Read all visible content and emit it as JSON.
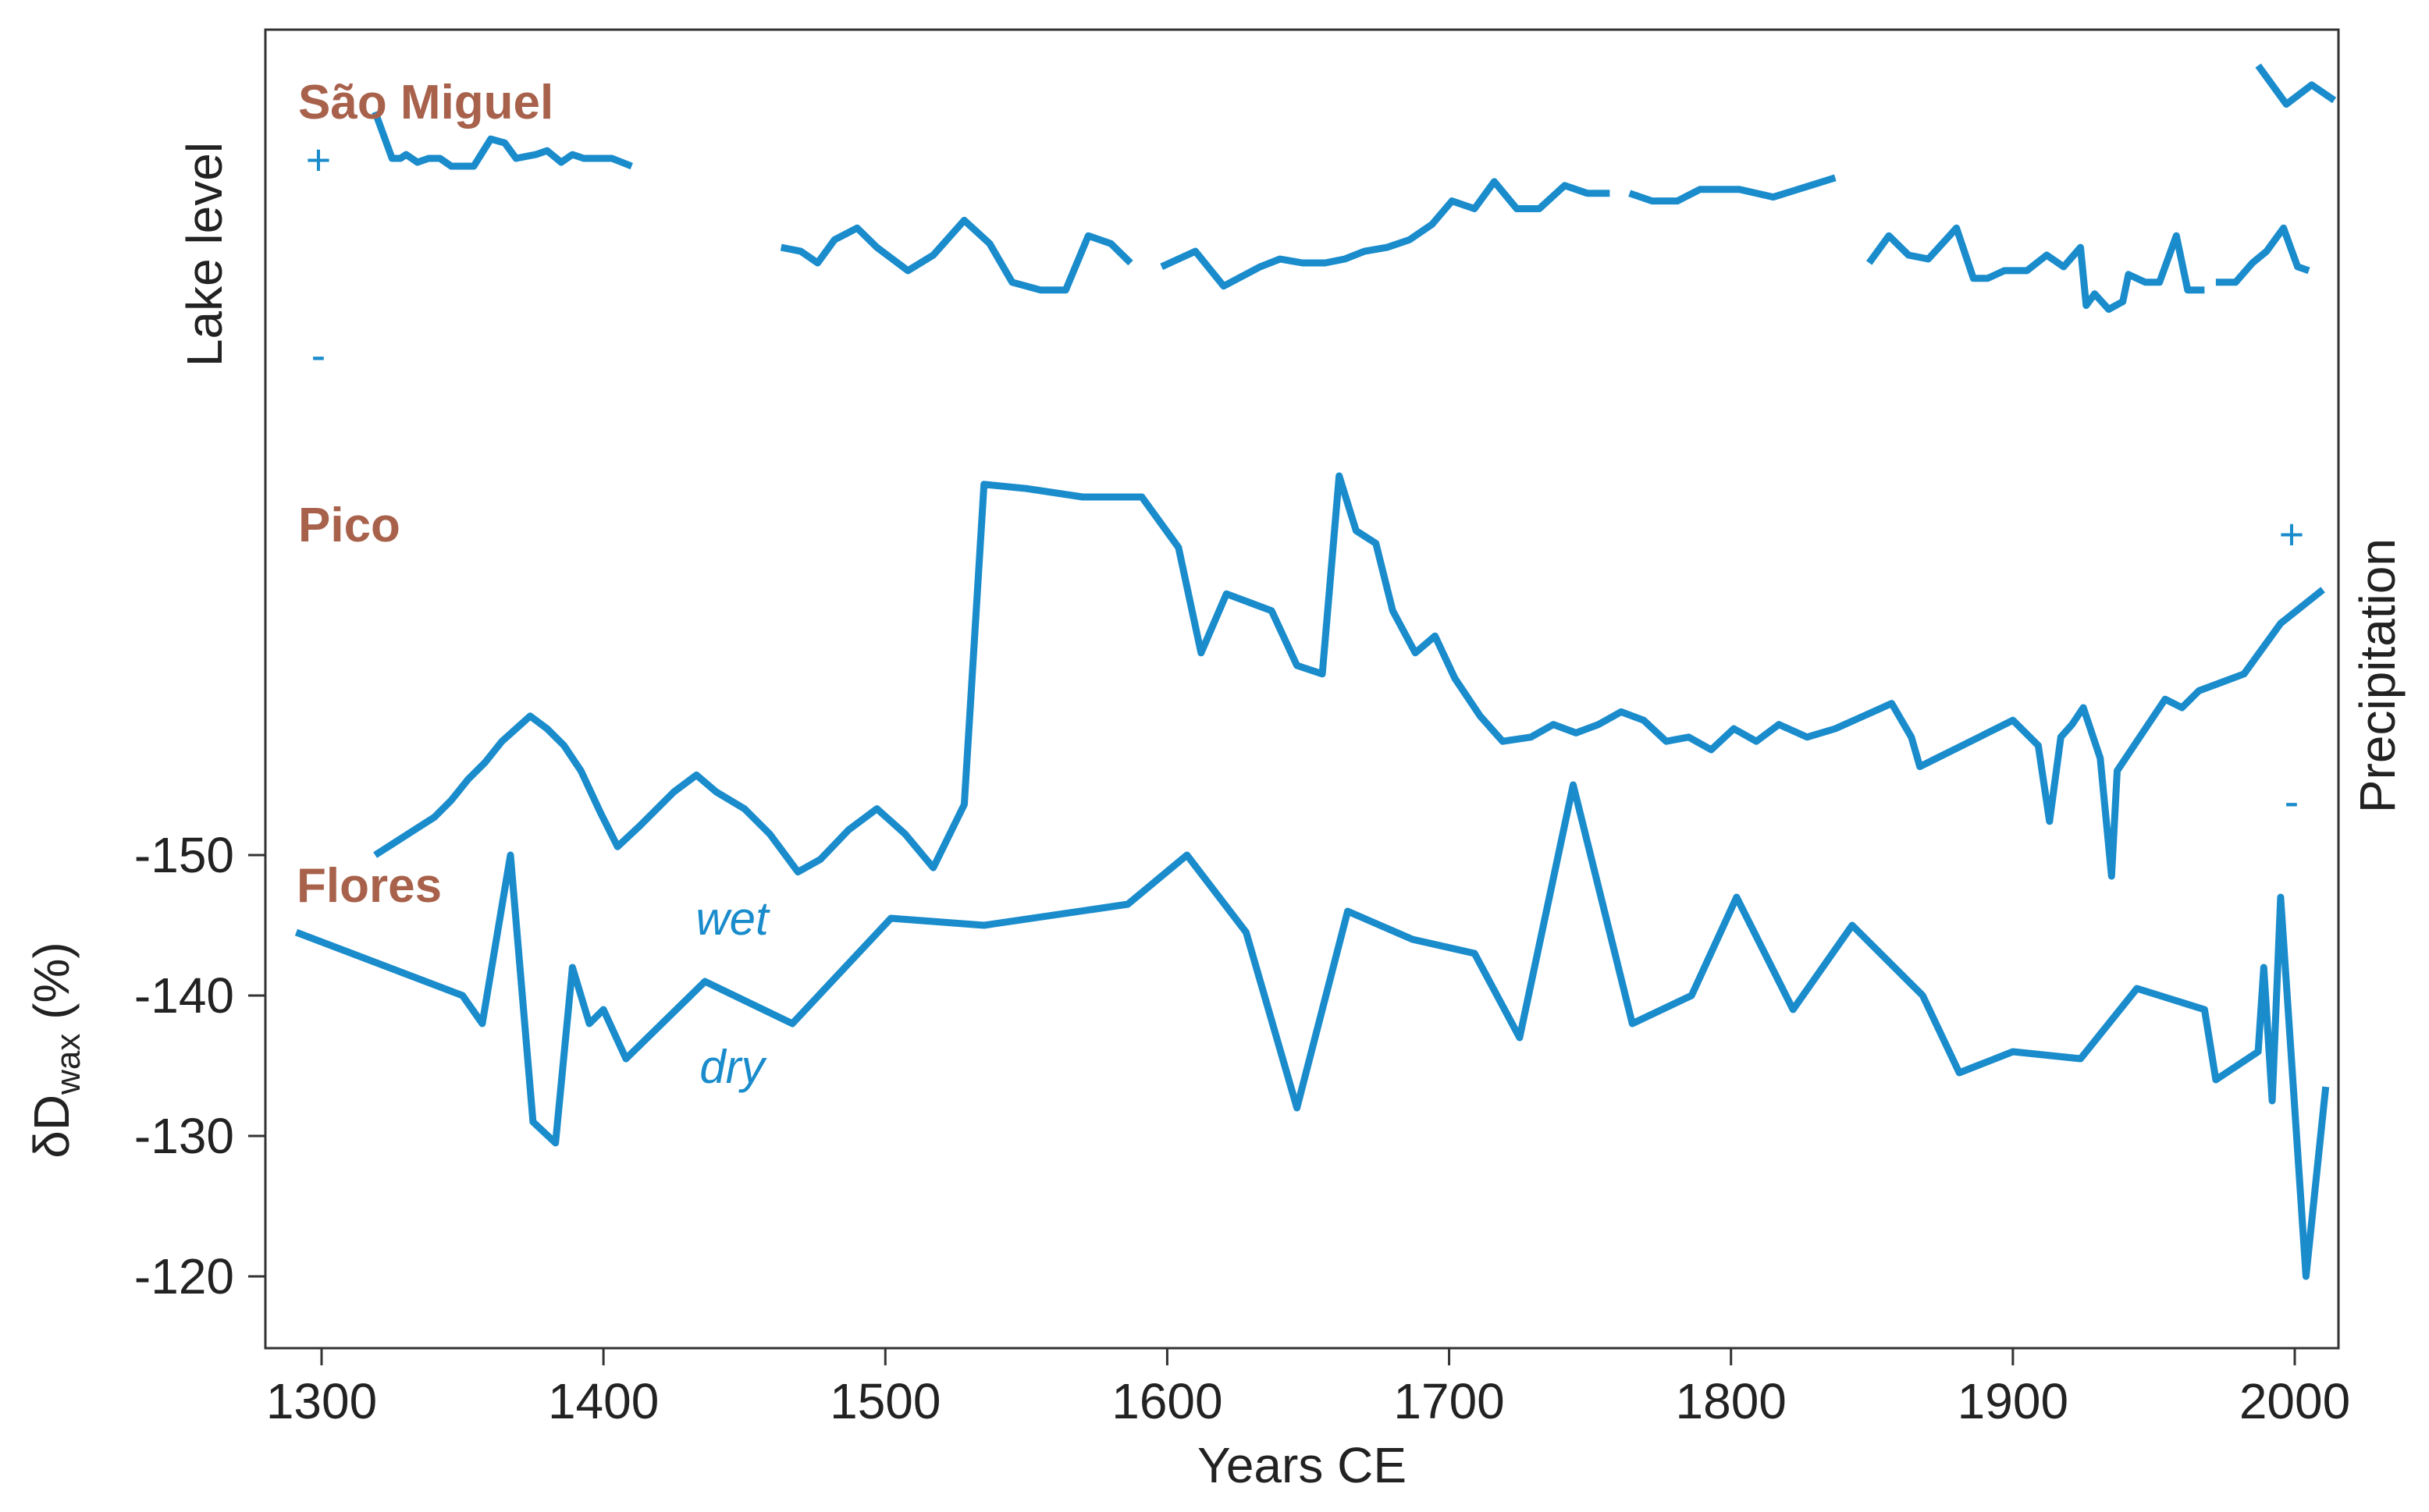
{
  "colors": {
    "line": "#1a8ccc",
    "site_label": "#a8624c",
    "frame": "#333333",
    "text": "#222222",
    "annotation": "#1a8ccc"
  },
  "labels": {
    "site_sao_miguel": "São Miguel",
    "site_pico": "Pico",
    "site_flores": "Flores",
    "left_axis_top": "Lake level",
    "right_axis": "Precipitation",
    "plus": "+",
    "minus": "-",
    "wet": "wet",
    "dry": "dry",
    "ylabel_prefix": "δD",
    "ylabel_sub": "wax",
    "ylabel_suffix": " (%)"
  },
  "chart_data": [
    {
      "type": "line",
      "title": "São Miguel",
      "ylabel": "Lake level",
      "xlim": [
        1285,
        2015
      ],
      "series": [
        {
          "values": [
            [
              1319,
              88
            ],
            [
              1325,
              76
            ],
            [
              1328,
              76
            ],
            [
              1330,
              77
            ],
            [
              1334,
              75
            ],
            [
              1338,
              76
            ],
            [
              1342,
              76
            ],
            [
              1346,
              74
            ],
            [
              1350,
              74
            ],
            [
              1354,
              74
            ],
            [
              1360,
              81
            ],
            [
              1365,
              80
            ],
            [
              1369,
              76
            ],
            [
              1376,
              77
            ],
            [
              1380,
              78
            ],
            [
              1385,
              75
            ],
            [
              1389,
              77
            ],
            [
              1393,
              76
            ],
            [
              1398,
              76
            ],
            [
              1403,
              76
            ],
            [
              1410,
              74
            ]
          ]
        },
        {
          "values": [
            [
              1463,
              53
            ],
            [
              1470,
              52
            ],
            [
              1476,
              49
            ],
            [
              1482,
              55
            ],
            [
              1490,
              58
            ],
            [
              1497,
              53
            ],
            [
              1508,
              47
            ],
            [
              1517,
              51
            ],
            [
              1528,
              60
            ],
            [
              1537,
              54
            ],
            [
              1545,
              44
            ],
            [
              1555,
              42
            ],
            [
              1564,
              42
            ],
            [
              1572,
              56
            ],
            [
              1580,
              54
            ],
            [
              1587,
              49
            ]
          ]
        },
        {
          "values": [
            [
              1598,
              48
            ],
            [
              1610,
              52
            ],
            [
              1620,
              43
            ],
            [
              1633,
              48
            ],
            [
              1640,
              50
            ],
            [
              1648,
              49
            ],
            [
              1656,
              49
            ],
            [
              1663,
              50
            ],
            [
              1670,
              52
            ],
            [
              1678,
              53
            ],
            [
              1686,
              55
            ],
            [
              1694,
              59
            ],
            [
              1701,
              65
            ],
            [
              1709,
              63
            ],
            [
              1716,
              70
            ],
            [
              1724,
              63
            ],
            [
              1732,
              63
            ],
            [
              1741,
              69
            ],
            [
              1749,
              67
            ],
            [
              1757,
              67
            ]
          ]
        },
        {
          "values": [
            [
              1764,
              67
            ],
            [
              1772,
              65
            ],
            [
              1781,
              65
            ],
            [
              1789,
              68
            ],
            [
              1803,
              68
            ],
            [
              1815,
              66
            ],
            [
              1837,
              71
            ]
          ]
        },
        {
          "values": [
            [
              1849,
              49
            ],
            [
              1856,
              56
            ],
            [
              1863,
              51
            ],
            [
              1870,
              50
            ],
            [
              1880,
              58
            ],
            [
              1886,
              45
            ],
            [
              1891,
              45
            ],
            [
              1897,
              47
            ],
            [
              1905,
              47
            ],
            [
              1912,
              51
            ],
            [
              1918,
              48
            ],
            [
              1924,
              53
            ],
            [
              1926,
              38
            ],
            [
              1929,
              41
            ],
            [
              1934,
              37
            ],
            [
              1939,
              39
            ],
            [
              1941,
              46
            ],
            [
              1947,
              44
            ],
            [
              1952,
              44
            ],
            [
              1958,
              56
            ],
            [
              1962,
              42
            ],
            [
              1968,
              42
            ]
          ]
        },
        {
          "values": [
            [
              1972,
              44
            ],
            [
              1979,
              44
            ],
            [
              1985,
              49
            ],
            [
              1990,
              52
            ],
            [
              1996,
              58
            ],
            [
              2001,
              48
            ],
            [
              2005,
              47
            ]
          ]
        },
        {
          "values": [
            [
              1987,
              100
            ],
            [
              1997,
              90
            ],
            [
              2006,
              95
            ],
            [
              2014,
              91
            ]
          ]
        }
      ]
    },
    {
      "type": "line",
      "title": "Pico",
      "ylabel": "Precipitation",
      "xlim": [
        1285,
        2015
      ],
      "series": [
        {
          "values": [
            [
              1319,
              10
            ],
            [
              1326,
              13
            ],
            [
              1333,
              16
            ],
            [
              1340,
              19
            ],
            [
              1346,
              23
            ],
            [
              1352,
              28
            ],
            [
              1358,
              32
            ],
            [
              1364,
              37
            ],
            [
              1369,
              40
            ],
            [
              1374,
              43
            ],
            [
              1380,
              40
            ],
            [
              1386,
              36
            ],
            [
              1392,
              30
            ],
            [
              1399,
              20
            ],
            [
              1405,
              12
            ],
            [
              1413,
              17
            ],
            [
              1425,
              25
            ],
            [
              1433,
              29
            ],
            [
              1440,
              25
            ],
            [
              1450,
              21
            ],
            [
              1459,
              15
            ],
            [
              1469,
              6
            ],
            [
              1477,
              9
            ],
            [
              1487,
              16
            ],
            [
              1497,
              21
            ],
            [
              1507,
              15
            ],
            [
              1517,
              7
            ],
            [
              1528,
              22
            ],
            [
              1535,
              98
            ],
            [
              1550,
              97
            ],
            [
              1570,
              95
            ],
            [
              1591,
              95
            ],
            [
              1604,
              83
            ],
            [
              1612,
              58
            ],
            [
              1621,
              72
            ],
            [
              1629,
              70
            ],
            [
              1637,
              68
            ],
            [
              1646,
              55
            ],
            [
              1655,
              53
            ],
            [
              1661,
              100
            ],
            [
              1667,
              87
            ],
            [
              1674,
              84
            ],
            [
              1680,
              68
            ],
            [
              1688,
              58
            ],
            [
              1695,
              62
            ],
            [
              1702,
              52
            ],
            [
              1711,
              43
            ],
            [
              1719,
              37
            ],
            [
              1729,
              38
            ],
            [
              1737,
              41
            ],
            [
              1745,
              39
            ],
            [
              1753,
              41
            ],
            [
              1761,
              44
            ],
            [
              1769,
              42
            ],
            [
              1777,
              37
            ],
            [
              1785,
              38
            ],
            [
              1793,
              35
            ],
            [
              1801,
              40
            ],
            [
              1809,
              37
            ],
            [
              1817,
              41
            ],
            [
              1827,
              38
            ],
            [
              1837,
              40
            ],
            [
              1847,
              43
            ],
            [
              1857,
              46
            ],
            [
              1864,
              38
            ],
            [
              1867,
              31
            ],
            [
              1873,
              33
            ],
            [
              1882,
              36
            ],
            [
              1891,
              39
            ],
            [
              1900,
              42
            ],
            [
              1909,
              36
            ],
            [
              1913,
              18
            ],
            [
              1917,
              38
            ],
            [
              1921,
              41
            ],
            [
              1925,
              45
            ],
            [
              1931,
              33
            ],
            [
              1935,
              5
            ],
            [
              1937,
              30
            ],
            [
              1945,
              38
            ],
            [
              1954,
              47
            ],
            [
              1960,
              45
            ],
            [
              1966,
              49
            ],
            [
              1974,
              51
            ],
            [
              1982,
              53
            ],
            [
              1995,
              65
            ],
            [
              2010,
              73
            ]
          ]
        }
      ]
    },
    {
      "type": "line",
      "title": "Flores",
      "ylabel": "δDwax (%)",
      "xlabel": "Years CE",
      "xlim": [
        1285,
        2015
      ],
      "ylim": [
        -118,
        -155
      ],
      "yticks": [
        -150,
        -140,
        -130,
        -120
      ],
      "xticks": [
        1300,
        1400,
        1500,
        1600,
        1700,
        1800,
        1900,
        2000
      ],
      "annotations": [
        "wet",
        "dry"
      ],
      "series": [
        {
          "values": [
            [
              1291,
              -144.5
            ],
            [
              1350,
              -140
            ],
            [
              1357,
              -138
            ],
            [
              1367,
              -150
            ],
            [
              1375,
              -131
            ],
            [
              1383,
              -129.5
            ],
            [
              1389,
              -142
            ],
            [
              1395,
              -138
            ],
            [
              1400,
              -139
            ],
            [
              1408,
              -135.5
            ],
            [
              1436,
              -141
            ],
            [
              1467,
              -138
            ],
            [
              1502,
              -145.5
            ],
            [
              1535,
              -145
            ],
            [
              1586,
              -146.5
            ],
            [
              1607,
              -150
            ],
            [
              1628,
              -144.5
            ],
            [
              1646,
              -132
            ],
            [
              1664,
              -146
            ],
            [
              1687,
              -144
            ],
            [
              1709,
              -143
            ],
            [
              1725,
              -137
            ],
            [
              1744,
              -155
            ],
            [
              1765,
              -138
            ],
            [
              1786,
              -140
            ],
            [
              1802,
              -147
            ],
            [
              1822,
              -139
            ],
            [
              1843,
              -145
            ],
            [
              1868,
              -140
            ],
            [
              1881,
              -134.5
            ],
            [
              1900,
              -136
            ],
            [
              1924,
              -135.5
            ],
            [
              1944,
              -140.5
            ],
            [
              1968,
              -139
            ],
            [
              1972,
              -134
            ],
            [
              1987,
              -136
            ],
            [
              1989,
              -142
            ],
            [
              1992,
              -132.5
            ],
            [
              1995,
              -147
            ],
            [
              2004,
              -120
            ],
            [
              2011,
              -133.5
            ]
          ]
        }
      ]
    }
  ]
}
